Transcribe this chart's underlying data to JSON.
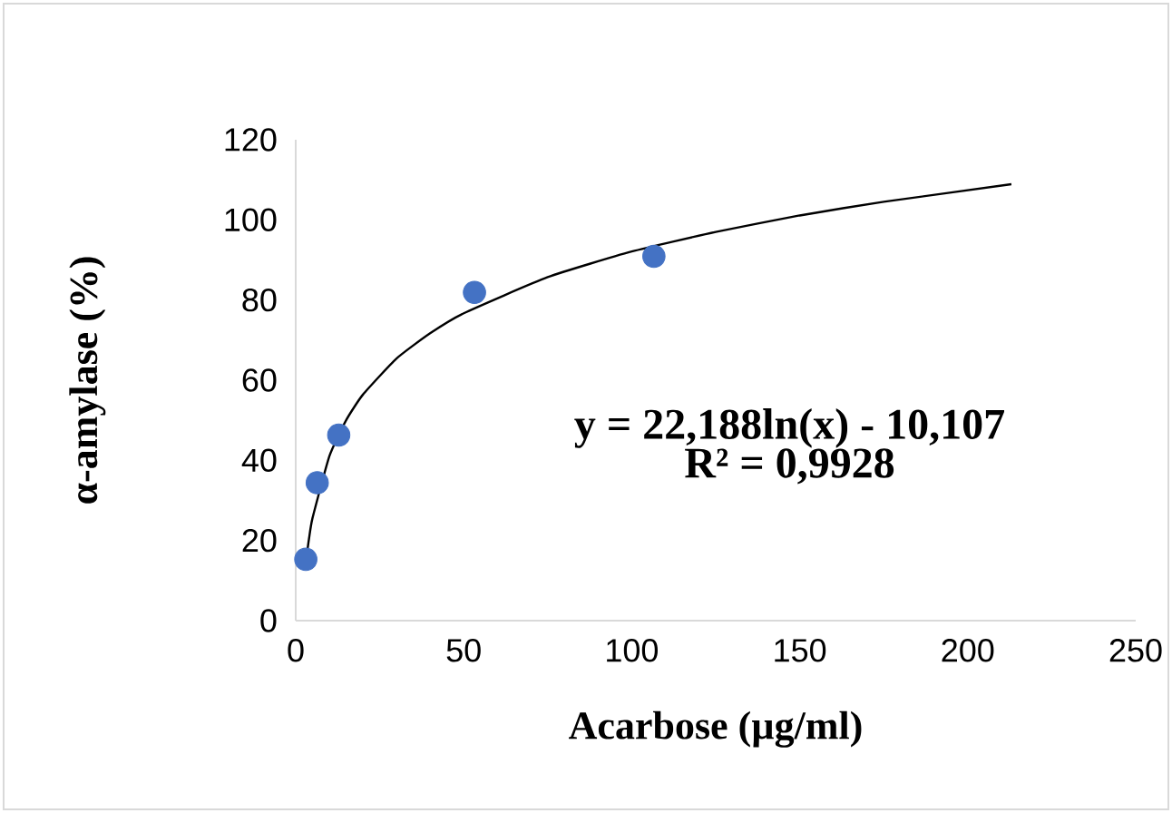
{
  "chart_data": {
    "type": "scatter",
    "xlabel": "Acarbose (µg/ml)",
    "ylabel": "α-amylase (%)",
    "xlim": [
      0,
      250
    ],
    "xticks": [
      0,
      50,
      100,
      150,
      200,
      250
    ],
    "ylim": [
      0,
      120
    ],
    "yticks": [
      0,
      20,
      40,
      60,
      80,
      100,
      120
    ],
    "grid": false,
    "marker": "circle",
    "annotations": [
      "y = 22,188ln(x) - 10,107",
      "R² = 0,9928"
    ],
    "series": [
      {
        "color": "#4472c4",
        "x": [
          3.0,
          6.4,
          12.8,
          53.2,
          106.6
        ],
        "values": [
          15.3,
          34.4,
          46.3,
          81.9,
          90.9
        ]
      },
      {
        "type": "line",
        "color": "#000000",
        "marker": "none",
        "x": [
          3.5,
          4,
          5,
          10,
          15,
          20,
          30,
          40,
          50,
          75,
          100,
          125,
          150,
          175,
          213
        ],
        "values": [
          17.7,
          20.7,
          25.6,
          41.0,
          50.0,
          56.4,
          65.4,
          71.7,
          76.7,
          85.7,
          92.1,
          97.0,
          101.1,
          104.5,
          108.9
        ]
      }
    ]
  }
}
